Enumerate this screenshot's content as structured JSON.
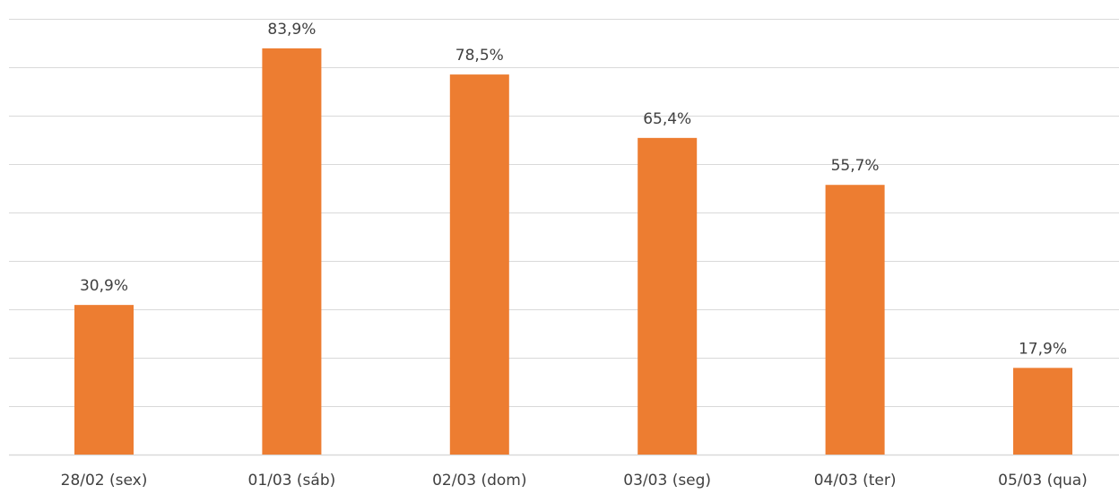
{
  "chart_data": {
    "type": "bar",
    "title": "",
    "xlabel": "",
    "ylabel": "",
    "categories": [
      "28/02 (sex)",
      "01/03 (sáb)",
      "02/03 (dom)",
      "03/03 (seg)",
      "04/03 (ter)",
      "05/03 (qua)"
    ],
    "values": [
      30.9,
      83.9,
      78.5,
      65.4,
      55.7,
      17.9
    ],
    "data_labels": [
      "30,9%",
      "83,9%",
      "78,5%",
      "65,4%",
      "55,7%",
      "17,9%"
    ],
    "ylim": [
      0,
      90
    ],
    "ytick_step": 10,
    "grid": true,
    "legend": "none",
    "bar_color": "#ED7D31",
    "grid_color": "#D9D9D9",
    "label_color": "#404040"
  }
}
